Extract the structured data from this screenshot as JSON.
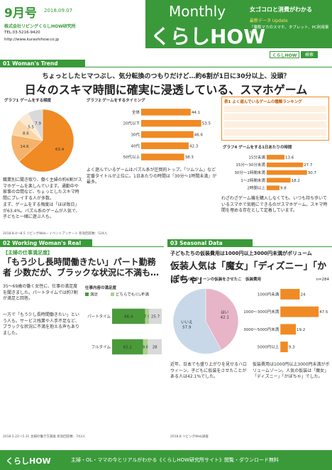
{
  "header": {
    "issue": "9月号",
    "date": "2018.09.07",
    "company": "株式会社リビングくらしHOW研究所",
    "tel": "TEL.03-5216-9420",
    "url": "http://www.kurashihow.co.jp",
    "monthly": "Monthly",
    "brand": "くらしHOW",
    "tagline": "女ゴコロと消費がわかる",
    "update_label": "最新データ Update",
    "update_title": "「量販マカのスマホ、タブレット、PC利用事情」",
    "search_brand": "くらしHOW",
    "search_button": "検索"
  },
  "section1": {
    "number": "01",
    "label": "Woman's Trend",
    "subtitle": "ちょっとしたヒマつぶし、気分転換のつもりだけど…約6割が1日に30分以上、没頭？",
    "headline": "日々のスキマ時間に確実に浸透している、スマホゲーム",
    "charts": [
      {
        "type": "pie",
        "title": "グラフ1 ゲームをする頻度",
        "values": [
          63.4,
          14.6,
          8.6,
          5.5,
          7.9
        ],
        "colors": [
          "#f08a24",
          "#f6b26b",
          "#fbd5a5",
          "#fde9cf",
          "#d9d9d9"
        ]
      },
      {
        "type": "hbar",
        "title": "グラフ2 ゲームをするタイミング",
        "categories": [
          "全体",
          "20代以下",
          "30代",
          "40代",
          "50代以上"
        ],
        "values": [
          44.1,
          53.5,
          46.6,
          42.3,
          38.3
        ],
        "xlim": [
          0,
          60
        ],
        "color": "#f08a24"
      },
      {
        "type": "hbar",
        "title": "グラフ4 ゲームをする1日あたりの時間",
        "categories": [
          "15分未満",
          "15分〜30分未満",
          "30分〜1時間未満",
          "1〜2時間未満",
          "2時間以上"
        ],
        "values": [
          13.6,
          27.7,
          30.7,
          18.2,
          9.8
        ],
        "xlim": [
          0,
          40
        ],
        "color": "#f08a24"
      }
    ],
    "table_title": "表1 よく遊んでいるゲームの種類ランキング",
    "paragraphs": [
      "職業別に聞き取り、働く主婦の約6割がスマホゲームを楽しんでいます。通勤中や家事の合間など、ちょっとしたスキマ時間にプレイする人が多数。",
      "まず、ゲームをする頻度は「ほぼ毎日」が63.4%。パズル系のゲームが人気で、子どもと一緒に遊ぶ人も。",
      "よく遊んでいるゲームはパズル系が圧倒的トップ。「ツムツム」など定番タイトルが上位に。1日あたりの時間は「30分〜1時間未満」が最多。",
      "わざわざゲーム機を購入しなくても、いつも持ち歩いているスマホで気軽にできるのがスマホゲーム。スキマ時間を埋める存在として定着しています。"
    ],
    "footnote": "2018.8.4〜8.5 リビングWeb・イベントアンケート 有効回答数：524人"
  },
  "section2": {
    "number": "02",
    "label": "Working Woman's Real",
    "kicker": "【主婦の仕事満足度】",
    "headline": "「もう少し長時間働きたい」パート勤務者 少数だが、ブラックな状況に不満も…",
    "chart": {
      "type": "stacked",
      "title": "仕事内容の満足度",
      "categories": [
        "パートタイム",
        "フルタイム"
      ],
      "series": [
        {
          "name": "満足",
          "color": "#4a9a3a",
          "values": [
            66.4,
            62.2
          ]
        },
        {
          "name": "どちらでもない",
          "color": "#a9d18e",
          "values": [
            7.9,
            9.8
          ]
        },
        {
          "name": "不満",
          "color": "#d9d9d9",
          "values": [
            25.7,
            28.0
          ]
        }
      ]
    },
    "paragraphs": [
      "35〜69歳の働く女性に、仕事の満足度を聞きました。パートタイムでは約7割が満足と回答。",
      "一方で「もう少し長時間働きたい」という人も。サービス残業や人手不足など、ブラックな状況に不満を抱える声もありました。"
    ],
    "footnote": "2018.5.22〜5.31 主婦の働き方調査 有効回答数：743人"
  },
  "section3": {
    "number": "03",
    "label": "Seasonal Data",
    "kicker": "子どもたちの仮装費用は1000円以上3000円未満がボリューム",
    "headline": "仮装人気は「魔女」「ディズニー」「かぼちゃ」",
    "pie": {
      "type": "pie",
      "title": "子どもにハロウィーンの仮装をさせたことがあるか",
      "labels": [
        "はい",
        "いいえ"
      ],
      "values": [
        42.1,
        57.9
      ],
      "colors": [
        "#e8b4c8",
        "#c8d8e8"
      ]
    },
    "bar": {
      "type": "hbar",
      "title": "仮装費用",
      "note": "n=284",
      "categories": [
        "1000円未満",
        "1000〜3000円未満",
        "3000〜5000円未満",
        "5000円以上"
      ],
      "values": [
        24.0,
        47.5,
        19.2,
        9.3
      ],
      "xlim": [
        0,
        50
      ],
      "color": "#f08a24"
    },
    "paragraphs": [
      "近年、日本でも盛り上がりを見せるハロウィーン。子どもに仮装をさせたことがある人は42.1%でした。",
      "仮装費用は1000円以上3000円未満がボリュームゾーン。人気の仮装は「魔女」「ディズニー」「かぼちゃ」でした。"
    ],
    "footnote": "2018.8 リビングWeb調査"
  },
  "footer": {
    "brand": "くらしHOW",
    "message": "主婦・OL・ママの今とリアルがわかる《くらしHOW研究所サイト》閲覧・ダウンロード無料"
  }
}
